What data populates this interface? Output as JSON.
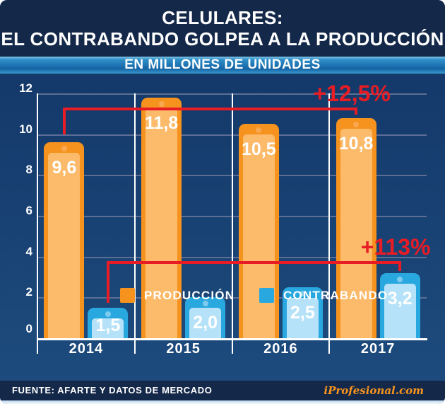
{
  "header": {
    "title_line1": "CELULARES:",
    "title_line2": "EL CONTRABANDO GOLPEA A LA PRODUCCIÓN",
    "subtitle": "EN MILLONES DE UNIDADES"
  },
  "chart_data": {
    "type": "bar",
    "title": "CELULARES: EL CONTRABANDO GOLPEA A LA PRODUCCIÓN",
    "subtitle": "EN MILLONES DE UNIDADES",
    "categories": [
      "2014",
      "2015",
      "2016",
      "2017"
    ],
    "series": [
      {
        "name": "PRODUCCIÓN",
        "values": [
          9.6,
          11.8,
          10.5,
          10.8
        ],
        "labels": [
          "9,6",
          "11,8",
          "10,5",
          "10,8"
        ],
        "color": "#f6921e",
        "screen_color": "#fcba6b",
        "dot_color": "#f9a850"
      },
      {
        "name": "CONTRABANDO",
        "values": [
          1.5,
          2.0,
          2.5,
          3.2
        ],
        "labels": [
          "1,5",
          "2,0",
          "2,5",
          "3,2"
        ],
        "color": "#29a8e0",
        "screen_color": "#b5e2f8",
        "dot_color": "#7ecbef"
      }
    ],
    "xlabel": "",
    "ylabel": "",
    "ylim": [
      0,
      12
    ],
    "yticks": [
      0,
      2,
      4,
      6,
      8,
      10,
      12
    ],
    "grid": true,
    "legend_position": "bottom",
    "annotations": [
      {
        "text": "+12,5%",
        "series": "PRODUCCIÓN",
        "series_index": 0,
        "from_category": "2014",
        "to_category": "2017",
        "line_level": 11.25,
        "from_end_level": 10.0,
        "to_end_level": 10.95,
        "color": "#e81c24"
      },
      {
        "text": "+113%",
        "series": "CONTRABANDO",
        "series_index": 1,
        "from_category": "2014",
        "to_category": "2017",
        "line_level": 3.7,
        "from_end_level": 1.75,
        "to_end_level": 3.3,
        "color": "#e81c24"
      }
    ]
  },
  "footer": {
    "source": "FUENTE: AFARTE Y DATOS DE MERCADO",
    "brand": "iProfesional.com"
  },
  "colors": {
    "header_bg": "#142849",
    "footer_bg": "#142849",
    "chart_bg_top": "#14396a",
    "chart_bg_bottom": "#1d4b7d",
    "band_top": "#7fc3e6",
    "band_bottom": "#1563a4",
    "gridline": "#5c6e94",
    "axis": "#ffffff",
    "annotation_red": "#e81c24",
    "produccion_orange": "#f6921e",
    "contrabando_blue": "#29a8e0",
    "brand_orange": "#f8941e",
    "text": "#ffffff"
  }
}
